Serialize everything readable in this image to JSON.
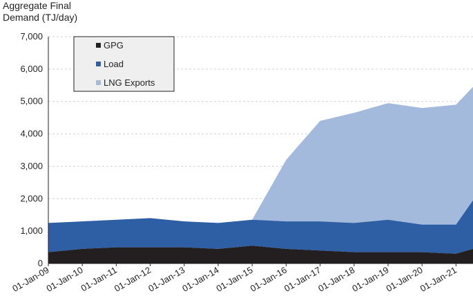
{
  "chart_data": {
    "type": "area",
    "title": "",
    "ylabel": "Aggregate Final Demand (TJ/day)",
    "ylabel_lines": [
      "Aggregate Final",
      "Demand (TJ/day)"
    ],
    "xlabel": "",
    "ylim": [
      0,
      7000
    ],
    "y_ticks": [
      "0",
      "1,000",
      "2,000",
      "3,000",
      "4,000",
      "5,000",
      "6,000",
      "7,000"
    ],
    "x_ticks": [
      "01-Jan-09",
      "01-Jan-10",
      "01-Jan-11",
      "01-Jan-12",
      "01-Jan-13",
      "01-Jan-14",
      "01-Jan-15",
      "01-Jan-16",
      "01-Jan-17",
      "01-Jan-18",
      "01-Jan-19",
      "01-Jan-20",
      "01-Jan-21"
    ],
    "stacked": true,
    "grid": "horizontal dashed",
    "legend_position": "top-left",
    "colors": {
      "GPG": "#231f20",
      "Load": "#2e5ea3",
      "LNG Exports": "#a3badc"
    },
    "series": [
      {
        "name": "GPG",
        "x": [
          2009,
          2010,
          2011,
          2012,
          2013,
          2014,
          2015,
          2016,
          2017,
          2018,
          2019,
          2020,
          2021,
          2021.5
        ],
        "values": [
          350,
          450,
          500,
          500,
          500,
          450,
          550,
          450,
          400,
          350,
          350,
          350,
          300,
          450
        ]
      },
      {
        "name": "Load",
        "x": [
          2009,
          2010,
          2011,
          2012,
          2013,
          2014,
          2015,
          2016,
          2017,
          2018,
          2019,
          2020,
          2021,
          2021.5
        ],
        "values": [
          900,
          850,
          850,
          900,
          800,
          800,
          800,
          850,
          900,
          900,
          1000,
          850,
          900,
          1500
        ]
      },
      {
        "name": "LNG Exports",
        "x": [
          2009,
          2010,
          2011,
          2012,
          2013,
          2014,
          2015,
          2016,
          2017,
          2018,
          2019,
          2020,
          2021,
          2021.5
        ],
        "values": [
          0,
          0,
          0,
          0,
          0,
          0,
          0,
          1900,
          3100,
          3400,
          3600,
          3600,
          3700,
          3500
        ]
      }
    ]
  }
}
